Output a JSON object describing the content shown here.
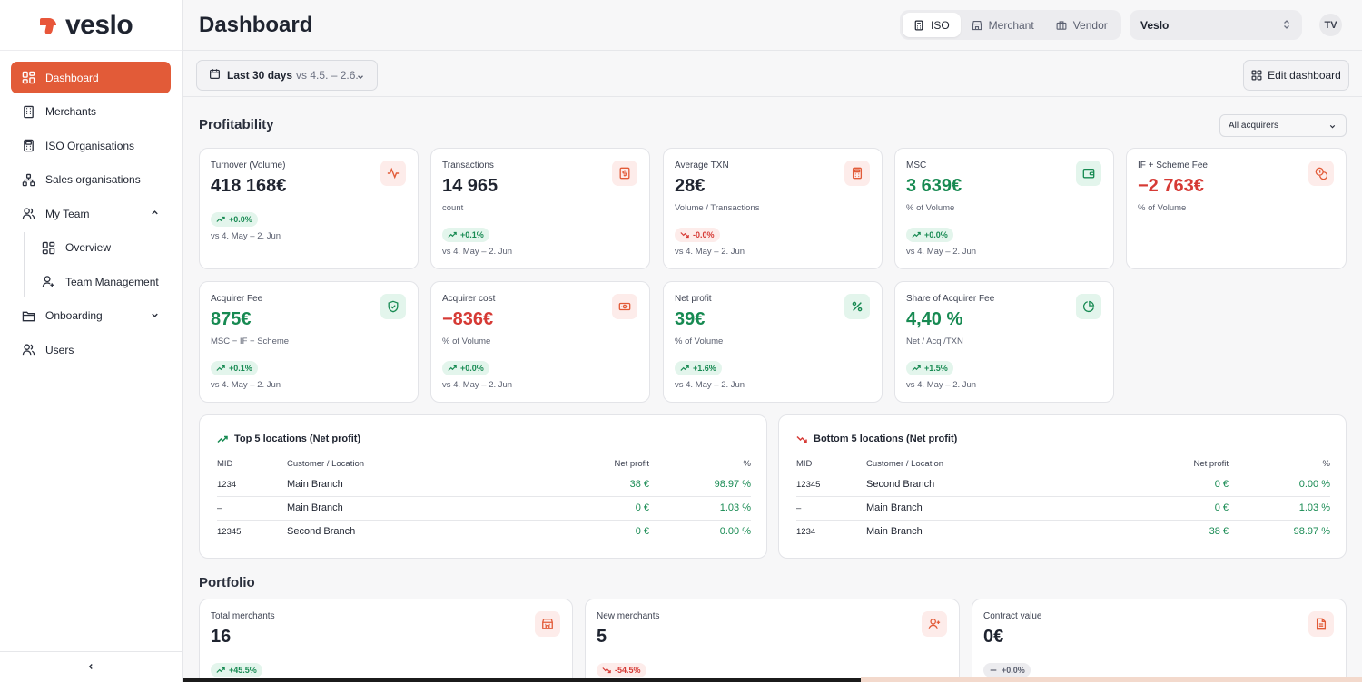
{
  "brand": {
    "name": "veslo",
    "accent": "#e25b38"
  },
  "sidebar": {
    "items": [
      {
        "label": "Dashboard",
        "icon": "dashboard-icon",
        "active": true
      },
      {
        "label": "Merchants",
        "icon": "building-icon"
      },
      {
        "label": "ISO Organisations",
        "icon": "calculator-icon"
      },
      {
        "label": "Sales organisations",
        "icon": "hierarchy-icon"
      },
      {
        "label": "My Team",
        "icon": "users-icon",
        "expanded": true
      },
      {
        "label": "Overview",
        "icon": "dashboard-icon",
        "sub": true
      },
      {
        "label": "Team Management",
        "icon": "user-icon",
        "sub": true
      },
      {
        "label": "Onboarding",
        "icon": "folder-icon"
      },
      {
        "label": "Users",
        "icon": "users-icon"
      }
    ]
  },
  "header": {
    "title": "Dashboard",
    "tabs": [
      {
        "label": "ISO",
        "active": true
      },
      {
        "label": "Merchant"
      },
      {
        "label": "Vendor"
      }
    ],
    "org": "Veslo",
    "avatar": "TV"
  },
  "toolbar": {
    "range_label": "Last 30 days",
    "range_compare": "vs 4.5. – 2.6.",
    "edit_label": "Edit dashboard"
  },
  "profitability": {
    "title": "Profitability",
    "acquirer_filter": "All acquirers",
    "cards": [
      {
        "label": "Turnover (Volume)",
        "value": "418 168€",
        "sub": "",
        "badge": "+0.0%",
        "trend": "up",
        "compare": "vs 4. May – 2. Jun",
        "icon": "activity-icon",
        "tone": "red",
        "value_color": "default"
      },
      {
        "label": "Transactions",
        "value": "14 965",
        "sub": "count",
        "badge": "+0.1%",
        "trend": "up",
        "compare": "vs 4. May – 2. Jun",
        "icon": "receipt-icon",
        "tone": "red",
        "value_color": "default"
      },
      {
        "label": "Average TXN",
        "value": "28€",
        "sub": "Volume / Transactions",
        "badge": "-0.0%",
        "trend": "down",
        "compare": "vs 4. May – 2. Jun",
        "icon": "calculator-icon",
        "tone": "red",
        "value_color": "default"
      },
      {
        "label": "MSC",
        "value": "3 639€",
        "sub": "% of Volume",
        "badge": "+0.0%",
        "trend": "up",
        "compare": "vs 4. May – 2. Jun",
        "icon": "wallet-icon",
        "tone": "green",
        "value_color": "green"
      },
      {
        "label": "IF + Scheme Fee",
        "value": "−2 763€",
        "sub": "% of Volume",
        "badge": "",
        "trend": "",
        "compare": "",
        "icon": "coins-icon",
        "tone": "red",
        "value_color": "red"
      },
      {
        "label": "Acquirer Fee",
        "value": "875€",
        "sub": "MSC − IF − Scheme",
        "badge": "+0.1%",
        "trend": "up",
        "compare": "vs 4. May – 2. Jun",
        "icon": "shield-check-icon",
        "tone": "green",
        "value_color": "green"
      },
      {
        "label": "Acquirer cost",
        "value": "−836€",
        "sub": "% of Volume",
        "badge": "+0.0%",
        "trend": "up",
        "compare": "vs 4. May – 2. Jun",
        "icon": "banknote-icon",
        "tone": "red",
        "value_color": "red"
      },
      {
        "label": "Net profit",
        "value": "39€",
        "sub": "% of Volume",
        "badge": "+1.6%",
        "trend": "up",
        "compare": "vs 4. May – 2. Jun",
        "icon": "percent-icon",
        "tone": "green",
        "value_color": "green"
      },
      {
        "label": "Share of Acquirer Fee",
        "value": "4,40 %",
        "sub": "Net / Acq /TXN",
        "badge": "+1.5%",
        "trend": "up",
        "compare": "vs 4. May – 2. Jun",
        "icon": "pie-chart-icon",
        "tone": "green",
        "value_color": "green"
      }
    ]
  },
  "top_locations": {
    "title": "Top 5 locations (Net profit)",
    "columns": [
      "MID",
      "Customer / Location",
      "Net profit",
      "%"
    ],
    "rows": [
      [
        "1234",
        "Main Branch",
        "38 €",
        "98.97 %"
      ],
      [
        "–",
        "Main Branch",
        "0 €",
        "1.03 %"
      ],
      [
        "12345",
        "Second Branch",
        "0 €",
        "0.00 %"
      ]
    ]
  },
  "bottom_locations": {
    "title": "Bottom 5 locations (Net profit)",
    "columns": [
      "MID",
      "Customer / Location",
      "Net profit",
      "%"
    ],
    "rows": [
      [
        "12345",
        "Second Branch",
        "0 €",
        "0.00 %"
      ],
      [
        "–",
        "Main Branch",
        "0 €",
        "1.03 %"
      ],
      [
        "1234",
        "Main Branch",
        "38 €",
        "98.97 %"
      ]
    ]
  },
  "portfolio": {
    "title": "Portfolio",
    "cards": [
      {
        "label": "Total merchants",
        "value": "16",
        "badge": "+45.5%",
        "trend": "up",
        "icon": "store-icon"
      },
      {
        "label": "New merchants",
        "value": "5",
        "badge": "-54.5%",
        "trend": "down",
        "icon": "user-plus-icon"
      },
      {
        "label": "Contract value",
        "value": "0€",
        "badge": "+0.0%",
        "trend": "flat",
        "icon": "document-icon"
      }
    ]
  }
}
